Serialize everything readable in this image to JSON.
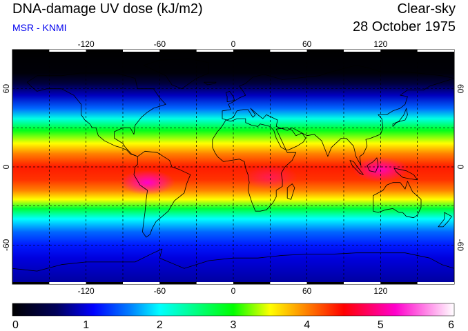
{
  "header": {
    "title": "DNA-damage UV dose (kJ/m2)",
    "subtitle": "MSR - KNMI",
    "mode": "Clear-sky",
    "date": "28 October 1975"
  },
  "map": {
    "lon_range": [
      -180,
      180
    ],
    "lat_range": [
      -90,
      90
    ],
    "lon_ticks": [
      -120,
      -60,
      0,
      60,
      120
    ],
    "lat_ticks": [
      60,
      0,
      -60
    ],
    "lon_tick_labels": [
      "-120",
      "-60",
      "0",
      "60",
      "120"
    ],
    "lat_tick_labels": [
      "60",
      "0",
      "-60"
    ],
    "gridline_lats": [
      -90,
      -60,
      -30,
      0,
      30,
      60,
      90
    ],
    "gridline_lons": [
      -180,
      -150,
      -120,
      -90,
      -60,
      -30,
      0,
      30,
      60,
      90,
      120,
      150,
      180
    ],
    "grid_style": "dashed",
    "coastline_color": "#000000"
  },
  "colorbar": {
    "min": 0,
    "max": 6,
    "tick_values": [
      0,
      1,
      2,
      3,
      4,
      5,
      6
    ],
    "tick_labels": [
      "0",
      "1",
      "2",
      "3",
      "4",
      "5",
      "6"
    ],
    "stops": [
      {
        "value": 0.0,
        "color": "#000000"
      },
      {
        "value": 0.6,
        "color": "#00005a"
      },
      {
        "value": 1.1,
        "color": "#0000ff"
      },
      {
        "value": 1.6,
        "color": "#0080ff"
      },
      {
        "value": 2.0,
        "color": "#00ffff"
      },
      {
        "value": 2.5,
        "color": "#00ff80"
      },
      {
        "value": 3.0,
        "color": "#00ff00"
      },
      {
        "value": 3.5,
        "color": "#ffff00"
      },
      {
        "value": 4.0,
        "color": "#ff8000"
      },
      {
        "value": 4.5,
        "color": "#ff0000"
      },
      {
        "value": 5.2,
        "color": "#ff00cc"
      },
      {
        "value": 6.0,
        "color": "#ffffff"
      }
    ]
  },
  "field": {
    "lat_profile": [
      {
        "lat": 90,
        "value": 0.0
      },
      {
        "lat": 72,
        "value": 0.05
      },
      {
        "lat": 64,
        "value": 0.4
      },
      {
        "lat": 55,
        "value": 0.9
      },
      {
        "lat": 45,
        "value": 1.5
      },
      {
        "lat": 37,
        "value": 2.1
      },
      {
        "lat": 28,
        "value": 2.9
      },
      {
        "lat": 18,
        "value": 3.5
      },
      {
        "lat": 10,
        "value": 4.0
      },
      {
        "lat": 0,
        "value": 4.4
      },
      {
        "lat": -10,
        "value": 4.3
      },
      {
        "lat": -18,
        "value": 4.0
      },
      {
        "lat": -25,
        "value": 3.5
      },
      {
        "lat": -32,
        "value": 2.8
      },
      {
        "lat": -40,
        "value": 2.0
      },
      {
        "lat": -50,
        "value": 1.5
      },
      {
        "lat": -60,
        "value": 1.2
      },
      {
        "lat": -70,
        "value": 1.0
      },
      {
        "lat": -80,
        "value": 0.9
      },
      {
        "lat": -90,
        "value": 0.8
      }
    ],
    "hotspots": [
      {
        "lon": -70,
        "lat": -12,
        "value": 1.5
      },
      {
        "lon": 120,
        "lat": -2,
        "value": 1.3
      },
      {
        "lon": 30,
        "lat": -8,
        "value": 0.6
      }
    ]
  },
  "coastlines": [
    {
      "name": "north-america",
      "points": [
        [
          -168,
          65
        ],
        [
          -160,
          70
        ],
        [
          -140,
          70
        ],
        [
          -125,
          72
        ],
        [
          -95,
          72
        ],
        [
          -80,
          68
        ],
        [
          -78,
          60
        ],
        [
          -65,
          60
        ],
        [
          -60,
          53
        ],
        [
          -55,
          48
        ],
        [
          -65,
          45
        ],
        [
          -70,
          42
        ],
        [
          -75,
          38
        ],
        [
          -80,
          32
        ],
        [
          -81,
          25
        ],
        [
          -84,
          30
        ],
        [
          -90,
          30
        ],
        [
          -97,
          27
        ],
        [
          -97,
          22
        ],
        [
          -90,
          18
        ],
        [
          -88,
          15
        ],
        [
          -83,
          10
        ],
        [
          -78,
          8
        ],
        [
          -84,
          10
        ],
        [
          -87,
          13
        ],
        [
          -92,
          15
        ],
        [
          -96,
          16
        ],
        [
          -105,
          20
        ],
        [
          -110,
          24
        ],
        [
          -112,
          30
        ],
        [
          -115,
          30
        ],
        [
          -117,
          33
        ],
        [
          -121,
          36
        ],
        [
          -124,
          40
        ],
        [
          -124,
          48
        ],
        [
          -130,
          55
        ],
        [
          -140,
          60
        ],
        [
          -152,
          60
        ],
        [
          -160,
          58
        ],
        [
          -165,
          62
        ],
        [
          -168,
          65
        ]
      ]
    },
    {
      "name": "south-america",
      "points": [
        [
          -78,
          8
        ],
        [
          -72,
          12
        ],
        [
          -62,
          11
        ],
        [
          -52,
          5
        ],
        [
          -50,
          0
        ],
        [
          -44,
          -2
        ],
        [
          -35,
          -6
        ],
        [
          -38,
          -13
        ],
        [
          -40,
          -20
        ],
        [
          -48,
          -26
        ],
        [
          -53,
          -34
        ],
        [
          -58,
          -38
        ],
        [
          -63,
          -42
        ],
        [
          -66,
          -47
        ],
        [
          -68,
          -52
        ],
        [
          -71,
          -54
        ],
        [
          -74,
          -50
        ],
        [
          -73,
          -42
        ],
        [
          -72,
          -35
        ],
        [
          -71,
          -25
        ],
        [
          -70,
          -18
        ],
        [
          -76,
          -14
        ],
        [
          -81,
          -6
        ],
        [
          -80,
          0
        ],
        [
          -78,
          2
        ],
        [
          -78,
          8
        ]
      ]
    },
    {
      "name": "greenland",
      "points": [
        [
          -73,
          78
        ],
        [
          -60,
          82
        ],
        [
          -35,
          83
        ],
        [
          -20,
          80
        ],
        [
          -20,
          72
        ],
        [
          -30,
          68
        ],
        [
          -42,
          60
        ],
        [
          -50,
          63
        ],
        [
          -55,
          70
        ],
        [
          -73,
          78
        ]
      ]
    },
    {
      "name": "eurasia",
      "points": [
        [
          -9,
          43
        ],
        [
          -9,
          37
        ],
        [
          -5,
          36
        ],
        [
          0,
          38
        ],
        [
          3,
          43
        ],
        [
          8,
          44
        ],
        [
          12,
          44
        ],
        [
          16,
          38
        ],
        [
          18,
          40
        ],
        [
          14,
          45
        ],
        [
          20,
          40
        ],
        [
          24,
          37
        ],
        [
          27,
          40
        ],
        [
          36,
          36
        ],
        [
          35,
          31
        ],
        [
          44,
          28
        ],
        [
          48,
          30
        ],
        [
          56,
          26
        ],
        [
          60,
          24
        ],
        [
          66,
          25
        ],
        [
          72,
          20
        ],
        [
          77,
          8
        ],
        [
          80,
          15
        ],
        [
          88,
          22
        ],
        [
          92,
          22
        ],
        [
          98,
          16
        ],
        [
          100,
          8
        ],
        [
          104,
          1
        ],
        [
          103,
          8
        ],
        [
          106,
          10
        ],
        [
          109,
          16
        ],
        [
          108,
          21
        ],
        [
          112,
          22
        ],
        [
          120,
          25
        ],
        [
          122,
          30
        ],
        [
          121,
          37
        ],
        [
          118,
          40
        ],
        [
          125,
          40
        ],
        [
          130,
          43
        ],
        [
          136,
          45
        ],
        [
          140,
          48
        ],
        [
          142,
          54
        ],
        [
          136,
          55
        ],
        [
          142,
          59
        ],
        [
          155,
          59
        ],
        [
          160,
          62
        ],
        [
          170,
          65
        ],
        [
          180,
          68
        ],
        [
          170,
          70
        ],
        [
          150,
          72
        ],
        [
          140,
          73
        ],
        [
          120,
          73
        ],
        [
          110,
          76
        ],
        [
          100,
          78
        ],
        [
          80,
          73
        ],
        [
          70,
          70
        ],
        [
          60,
          69
        ],
        [
          50,
          68
        ],
        [
          40,
          67
        ],
        [
          33,
          69
        ],
        [
          25,
          71
        ],
        [
          16,
          69
        ],
        [
          10,
          64
        ],
        [
          5,
          62
        ],
        [
          8,
          58
        ],
        [
          10,
          55
        ],
        [
          5,
          53
        ],
        [
          0,
          50
        ],
        [
          -4,
          48
        ],
        [
          -2,
          44
        ],
        [
          -9,
          43
        ]
      ]
    },
    {
      "name": "africa",
      "points": [
        [
          -17,
          21
        ],
        [
          -17,
          15
        ],
        [
          -15,
          11
        ],
        [
          -13,
          8
        ],
        [
          -8,
          4
        ],
        [
          -2,
          5
        ],
        [
          5,
          6
        ],
        [
          9,
          4
        ],
        [
          10,
          -1
        ],
        [
          12,
          -6
        ],
        [
          13,
          -12
        ],
        [
          12,
          -18
        ],
        [
          15,
          -27
        ],
        [
          18,
          -34
        ],
        [
          22,
          -34
        ],
        [
          27,
          -33
        ],
        [
          32,
          -28
        ],
        [
          35,
          -23
        ],
        [
          35,
          -18
        ],
        [
          40,
          -15
        ],
        [
          40,
          -10
        ],
        [
          39,
          -5
        ],
        [
          42,
          0
        ],
        [
          48,
          5
        ],
        [
          51,
          11
        ],
        [
          44,
          11
        ],
        [
          43,
          13
        ],
        [
          39,
          15
        ],
        [
          35,
          22
        ],
        [
          33,
          28
        ],
        [
          30,
          31
        ],
        [
          22,
          33
        ],
        [
          20,
          31
        ],
        [
          15,
          32
        ],
        [
          10,
          34
        ],
        [
          10,
          37
        ],
        [
          3,
          37
        ],
        [
          -2,
          35
        ],
        [
          -6,
          36
        ],
        [
          -10,
          30
        ],
        [
          -13,
          27
        ],
        [
          -17,
          21
        ]
      ]
    },
    {
      "name": "madagascar",
      "points": [
        [
          44,
          -16
        ],
        [
          48,
          -13
        ],
        [
          50,
          -16
        ],
        [
          47,
          -25
        ],
        [
          44,
          -24
        ],
        [
          44,
          -16
        ]
      ]
    },
    {
      "name": "arabia",
      "points": [
        [
          35,
          29
        ],
        [
          39,
          21
        ],
        [
          43,
          13
        ],
        [
          45,
          13
        ],
        [
          52,
          16
        ],
        [
          57,
          19
        ],
        [
          59,
          22
        ],
        [
          56,
          26
        ],
        [
          51,
          24
        ],
        [
          48,
          28
        ],
        [
          44,
          30
        ],
        [
          35,
          29
        ]
      ]
    },
    {
      "name": "australia",
      "points": [
        [
          114,
          -22
        ],
        [
          114,
          -34
        ],
        [
          118,
          -35
        ],
        [
          124,
          -33
        ],
        [
          130,
          -32
        ],
        [
          135,
          -35
        ],
        [
          138,
          -35
        ],
        [
          141,
          -38
        ],
        [
          147,
          -39
        ],
        [
          150,
          -37
        ],
        [
          153,
          -31
        ],
        [
          153,
          -25
        ],
        [
          146,
          -19
        ],
        [
          142,
          -11
        ],
        [
          140,
          -17
        ],
        [
          136,
          -12
        ],
        [
          130,
          -12
        ],
        [
          125,
          -14
        ],
        [
          122,
          -18
        ],
        [
          114,
          -22
        ]
      ]
    },
    {
      "name": "borneo",
      "points": [
        [
          109,
          1
        ],
        [
          111,
          -3
        ],
        [
          116,
          -4
        ],
        [
          118,
          1
        ],
        [
          117,
          7
        ],
        [
          114,
          4
        ],
        [
          109,
          1
        ]
      ]
    },
    {
      "name": "sumatra",
      "points": [
        [
          95,
          5
        ],
        [
          98,
          4
        ],
        [
          106,
          -6
        ],
        [
          103,
          -5
        ],
        [
          97,
          1
        ],
        [
          95,
          5
        ]
      ]
    },
    {
      "name": "new-guinea",
      "points": [
        [
          131,
          -1
        ],
        [
          136,
          -2
        ],
        [
          141,
          -3
        ],
        [
          147,
          -6
        ],
        [
          150,
          -10
        ],
        [
          143,
          -9
        ],
        [
          138,
          -8
        ],
        [
          133,
          -4
        ],
        [
          131,
          -1
        ]
      ]
    },
    {
      "name": "japan",
      "points": [
        [
          130,
          31
        ],
        [
          133,
          34
        ],
        [
          136,
          35
        ],
        [
          140,
          36
        ],
        [
          142,
          40
        ],
        [
          141,
          45
        ],
        [
          139,
          40
        ],
        [
          135,
          35
        ],
        [
          130,
          33
        ],
        [
          130,
          31
        ]
      ]
    },
    {
      "name": "uk",
      "points": [
        [
          -5,
          50
        ],
        [
          1,
          51
        ],
        [
          0,
          54
        ],
        [
          -3,
          58
        ],
        [
          -6,
          57
        ],
        [
          -5,
          54
        ],
        [
          -5,
          50
        ]
      ]
    },
    {
      "name": "iceland",
      "points": [
        [
          -24,
          65
        ],
        [
          -14,
          65
        ],
        [
          -15,
          64
        ],
        [
          -21,
          63
        ],
        [
          -24,
          65
        ]
      ]
    },
    {
      "name": "new-zealand",
      "points": [
        [
          172,
          -35
        ],
        [
          178,
          -38
        ],
        [
          175,
          -42
        ],
        [
          171,
          -46
        ],
        [
          167,
          -46
        ],
        [
          172,
          -40
        ],
        [
          172,
          -35
        ]
      ]
    },
    {
      "name": "antarctica",
      "points": [
        [
          -180,
          -78
        ],
        [
          -160,
          -80
        ],
        [
          -140,
          -75
        ],
        [
          -120,
          -73
        ],
        [
          -100,
          -73
        ],
        [
          -80,
          -73
        ],
        [
          -65,
          -66
        ],
        [
          -58,
          -63
        ],
        [
          -60,
          -70
        ],
        [
          -40,
          -78
        ],
        [
          -20,
          -72
        ],
        [
          0,
          -70
        ],
        [
          20,
          -70
        ],
        [
          40,
          -68
        ],
        [
          60,
          -67
        ],
        [
          80,
          -67
        ],
        [
          100,
          -66
        ],
        [
          120,
          -66
        ],
        [
          140,
          -66
        ],
        [
          160,
          -70
        ],
        [
          170,
          -75
        ],
        [
          180,
          -78
        ]
      ]
    }
  ]
}
